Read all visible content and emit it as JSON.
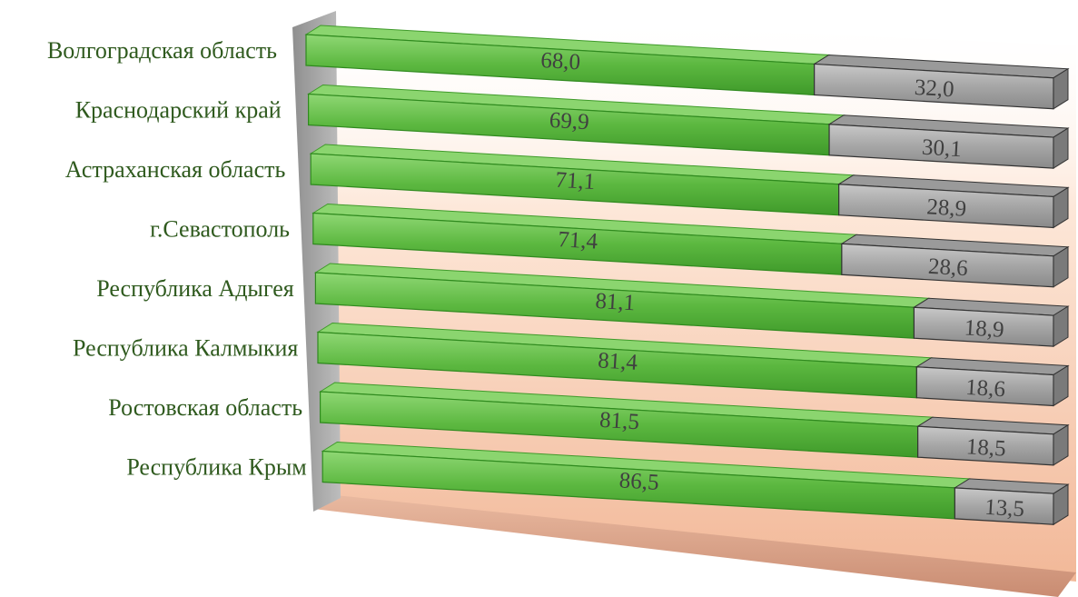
{
  "chart_data": {
    "type": "bar",
    "orientation": "horizontal",
    "stacked": true,
    "percent_stacked": true,
    "three_d": true,
    "title": "",
    "xlabel": "",
    "ylabel": "",
    "xlim": [
      0,
      100
    ],
    "grid": false,
    "legend": "none",
    "categories": [
      "Волгоградская область",
      "Краснодарский край",
      "Астраханская область",
      "г.Севастополь",
      "Республика Адыгея",
      "Республика Калмыкия",
      "Ростовская область",
      "Республика Крым"
    ],
    "series": [
      {
        "color": "#5cb840",
        "values": [
          68.0,
          69.9,
          71.1,
          71.4,
          81.1,
          81.4,
          81.5,
          86.5
        ],
        "labels": [
          "68,0",
          "69,9",
          "71,1",
          "71,4",
          "81,1",
          "81,4",
          "81,5",
          "86,5"
        ]
      },
      {
        "color": "#a6a6a6",
        "values": [
          32.0,
          30.1,
          28.9,
          28.6,
          18.9,
          18.6,
          18.5,
          13.5
        ],
        "labels": [
          "32,0",
          "30,1",
          "28,9",
          "28,6",
          "18,9",
          "18,6",
          "18,5",
          "13,5"
        ]
      }
    ],
    "background_colors": [
      "#fff8f2",
      "#f4c2a6"
    ],
    "wall_color": "#a8a8a8"
  }
}
